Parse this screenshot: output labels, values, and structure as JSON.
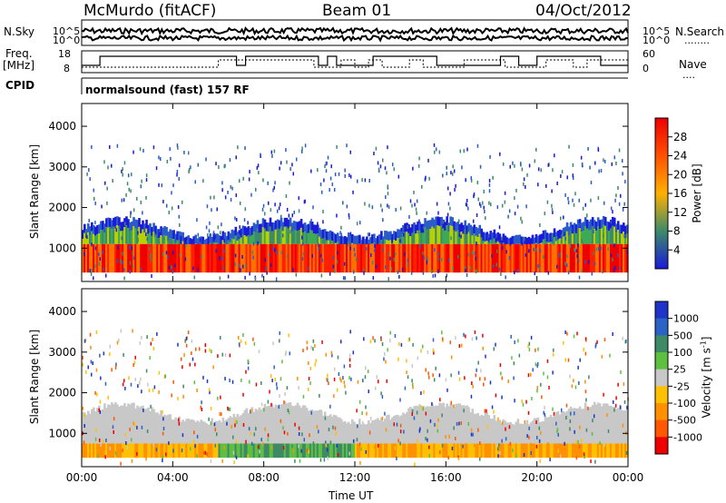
{
  "header": {
    "station": "McMurdo (fitACF)",
    "beam": "Beam 01",
    "date": "04/Oct/2012"
  },
  "strip_labels": {
    "nsky": "N.Sky",
    "nsearch": "N.Search",
    "nsearch_dots": "........",
    "freq": "Freq.",
    "mhz": "[MHz]",
    "nave": "Nave",
    "nave_dots": "....",
    "cpid": "CPID",
    "cpid_value": "normalsound (fast) 157 RF"
  },
  "strip_ticks": {
    "noise_left": [
      "10^5",
      "10^0"
    ],
    "noise_right": [
      "10^5",
      "10^0"
    ],
    "freq_left": [
      "18",
      "8"
    ],
    "nave_right": [
      "60",
      "0"
    ]
  },
  "colors": {
    "power_scale": [
      "#1a1ad8",
      "#2a5cc8",
      "#3d8a6a",
      "#3faa55",
      "#b8d000",
      "#ffb000",
      "#ff7000",
      "#ff2000",
      "#ee0000"
    ],
    "velocity_scale": [
      "#1e34c8",
      "#2a62c6",
      "#3f8a66",
      "#5ec040",
      "#c8c8c8",
      "#ffc000",
      "#ff9000",
      "#ff5800",
      "#ee0000"
    ],
    "noise_line": "#000000"
  },
  "chart_data": [
    {
      "type": "heatmap",
      "title": "",
      "xlabel": "Time UT",
      "ylabel": "Slant Range [km]",
      "xlim": [
        0,
        24
      ],
      "ylim": [
        180,
        4560
      ],
      "x_ticks": [
        "00:00",
        "04:00",
        "08:00",
        "12:00",
        "16:00",
        "20:00",
        "00:00"
      ],
      "y_ticks": [
        "1000",
        "2000",
        "3000",
        "4000"
      ],
      "colorbar": {
        "label": "Power [dB]",
        "range": [
          0,
          32
        ],
        "ticks": [
          "28",
          "24",
          "20",
          "16",
          "12",
          "8",
          "4"
        ]
      },
      "dominant_echo_band_km": [
        400,
        1500
      ],
      "peak_power_band_km": [
        400,
        1100
      ],
      "peak_power_db": 30
    },
    {
      "type": "heatmap",
      "title": "",
      "xlabel": "Time UT",
      "ylabel": "Slant Range [km]",
      "xlim": [
        0,
        24
      ],
      "ylim": [
        180,
        4560
      ],
      "x_ticks": [
        "00:00",
        "04:00",
        "08:00",
        "12:00",
        "16:00",
        "20:00",
        "00:00"
      ],
      "y_ticks": [
        "1000",
        "2000",
        "3000",
        "4000"
      ],
      "colorbar": {
        "label": "Velocity [m s",
        "unit_exponent": "-1",
        "unit_close": "]",
        "range": [
          -1000,
          1000
        ],
        "ticks": [
          "1000",
          "500",
          "100",
          "25",
          "-25",
          "-100",
          "-500",
          "-1000"
        ]
      },
      "velocity_segments": [
        {
          "x": [
            0,
            6
          ],
          "velocity": -100
        },
        {
          "x": [
            6,
            12
          ],
          "velocity": 300
        },
        {
          "x": [
            12,
            24
          ],
          "velocity": -100
        }
      ]
    }
  ]
}
